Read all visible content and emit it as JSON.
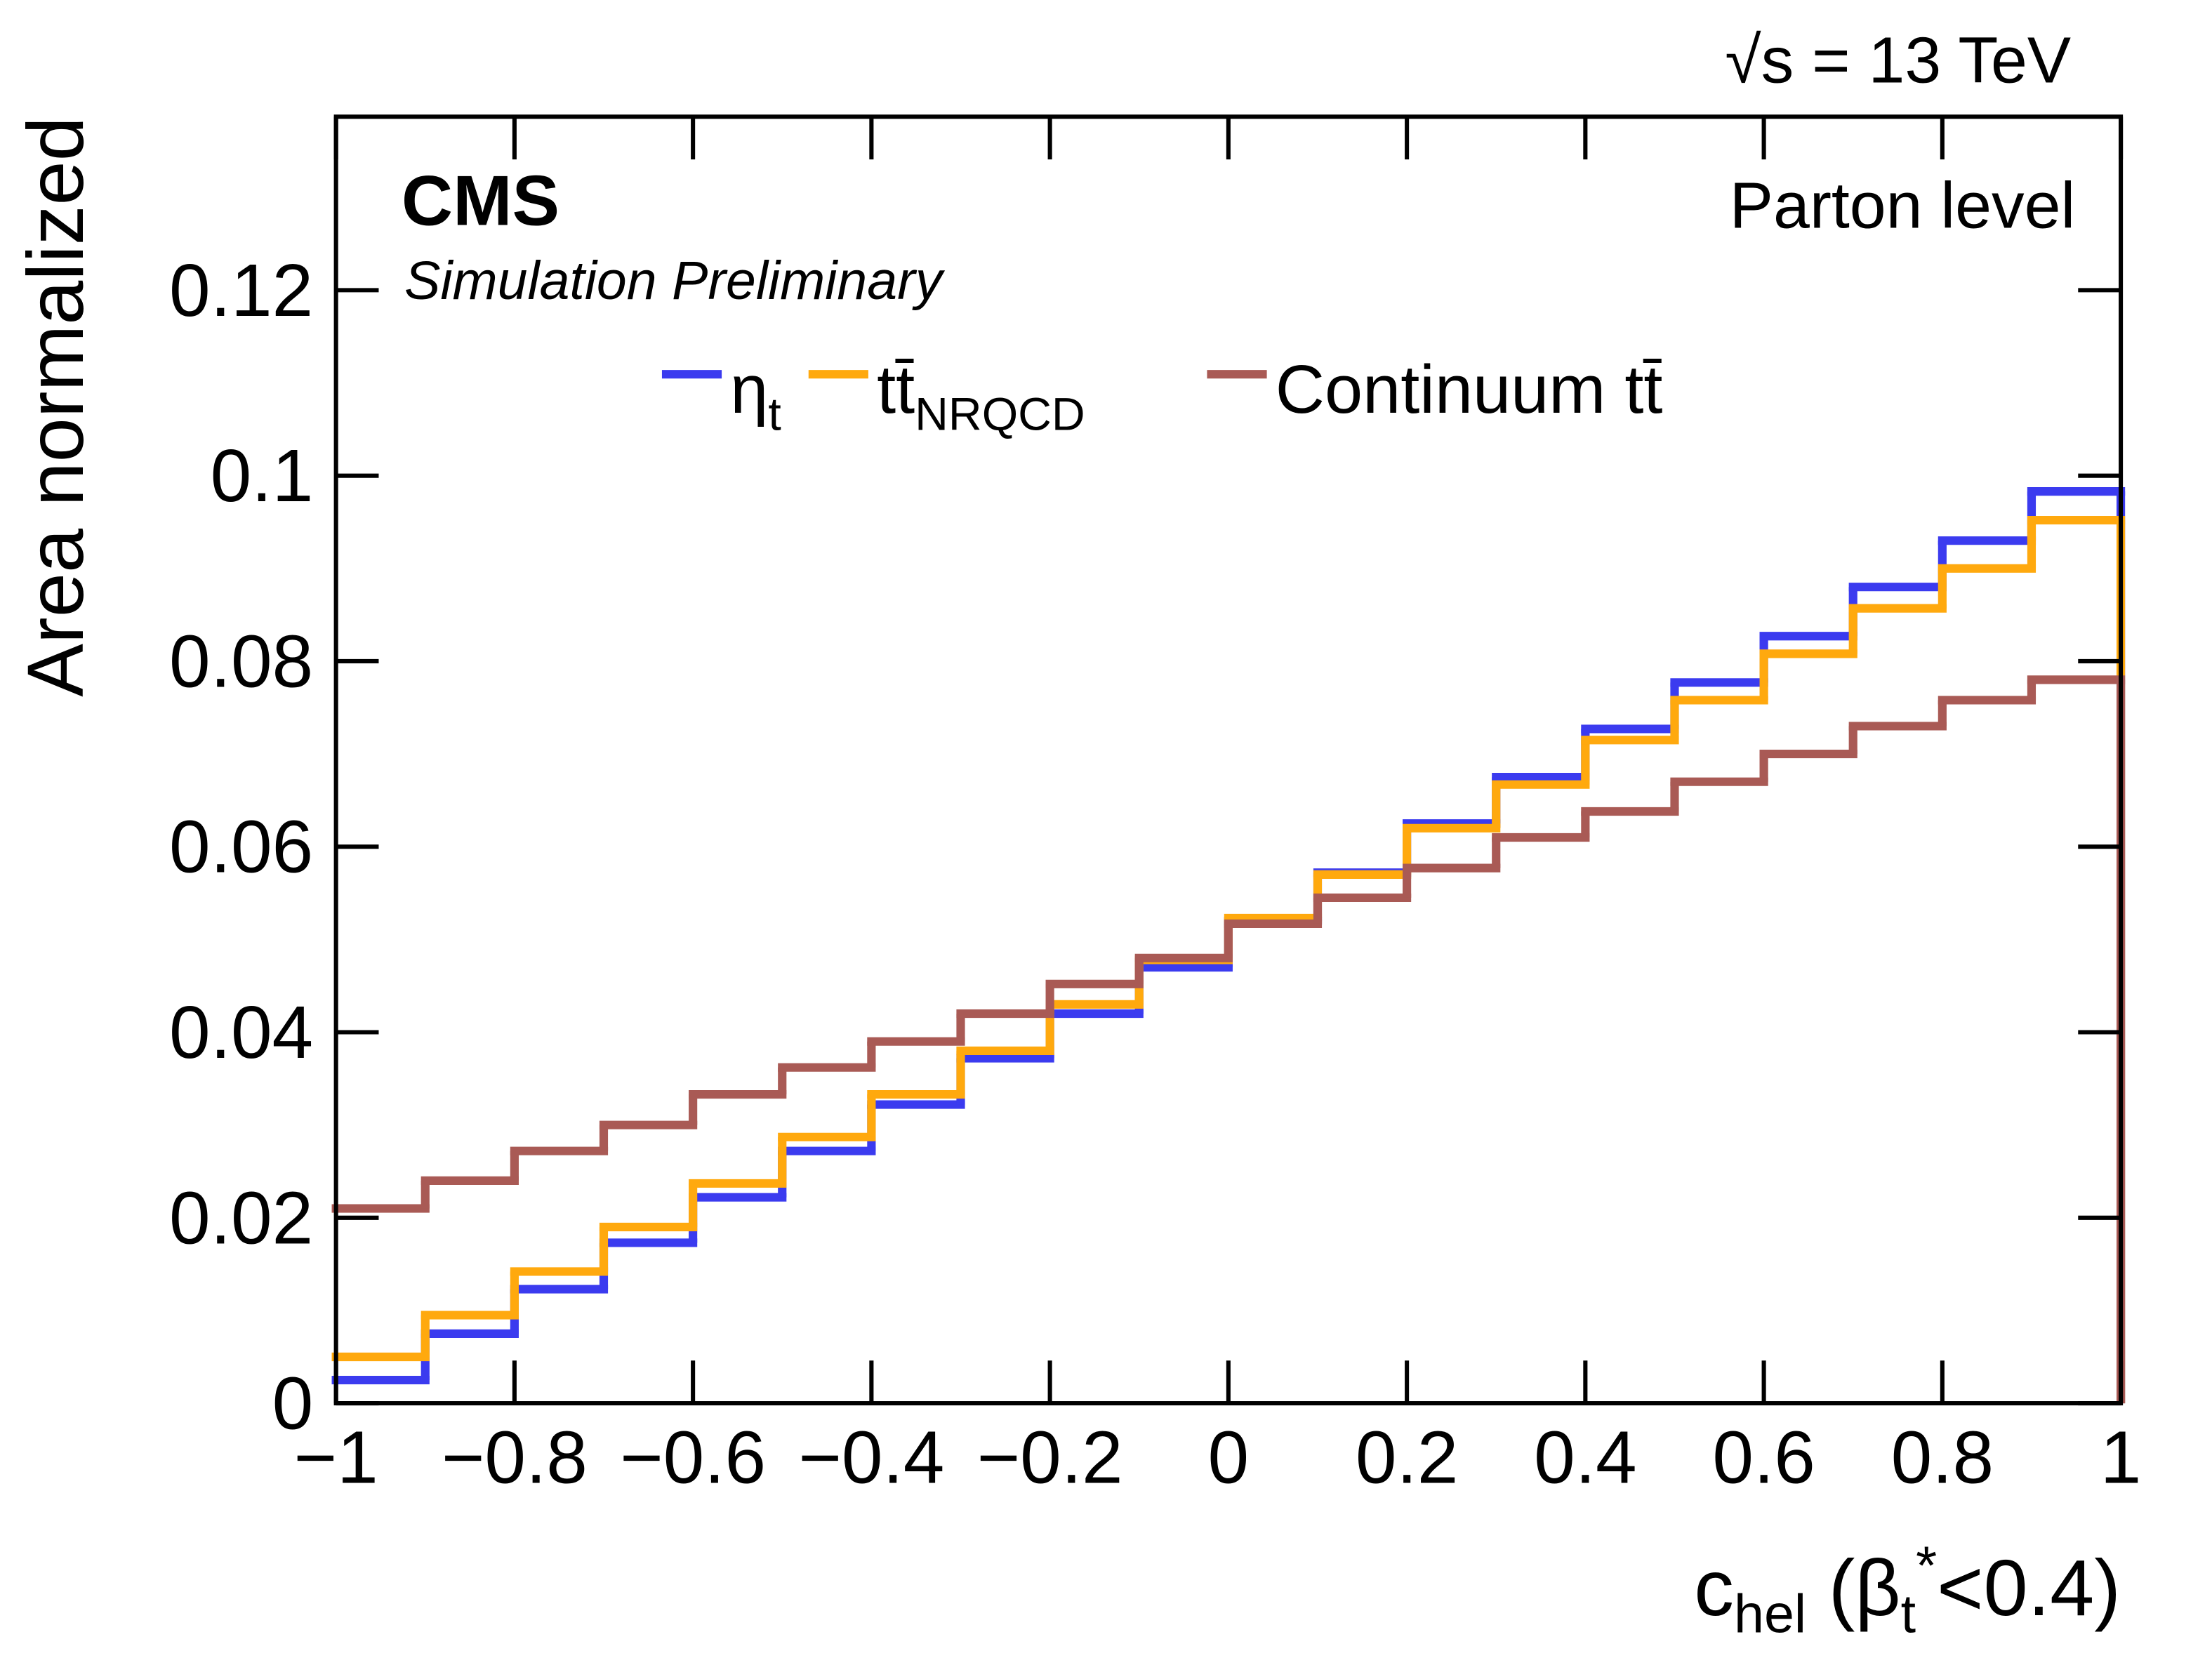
{
  "chart_data": {
    "type": "histogram",
    "energy_label": "√s = 13 TeV",
    "experiment": "CMS",
    "subtitle": "Simulation Preliminary",
    "annotation": "Parton level",
    "xlabel": "c_{hel} (β_{t}^{*}<0.4)",
    "ylabel": "Area normalized",
    "bins": [
      -1,
      -0.9,
      -0.8,
      -0.7,
      -0.6,
      -0.5,
      -0.4,
      -0.3,
      -0.2,
      -0.1,
      0,
      0.1,
      0.2,
      0.3,
      0.4,
      0.5,
      0.6,
      0.7,
      0.8,
      0.9,
      1
    ],
    "series": [
      {
        "name": "η_{t}",
        "color": "#3b3bef",
        "values": [
          0.0025,
          0.0075,
          0.0123,
          0.0173,
          0.0222,
          0.0272,
          0.0322,
          0.0372,
          0.042,
          0.047,
          0.052,
          0.0572,
          0.0625,
          0.0675,
          0.0727,
          0.0777,
          0.0827,
          0.088,
          0.093,
          0.0983
        ]
      },
      {
        "name": "tt̄_{NRQCD}",
        "color": "#ffa90e",
        "values": [
          0.005,
          0.0095,
          0.0142,
          0.019,
          0.0237,
          0.0287,
          0.0333,
          0.038,
          0.043,
          0.0478,
          0.0523,
          0.057,
          0.062,
          0.0667,
          0.0715,
          0.0758,
          0.0808,
          0.0857,
          0.09,
          0.0952
        ]
      },
      {
        "name": "Continuum tt̄",
        "color": "#a95a55",
        "values": [
          0.021,
          0.024,
          0.0272,
          0.03,
          0.0333,
          0.0362,
          0.039,
          0.042,
          0.0452,
          0.048,
          0.0517,
          0.0545,
          0.0577,
          0.061,
          0.0638,
          0.067,
          0.07,
          0.073,
          0.0758,
          0.078
        ]
      }
    ],
    "xlim": [
      -1,
      1
    ],
    "ylim": [
      0,
      0.1387
    ],
    "xticks": [
      {
        "value": -1,
        "label": "−1"
      },
      {
        "value": -0.8,
        "label": "−0.8"
      },
      {
        "value": -0.6,
        "label": "−0.6"
      },
      {
        "value": -0.4,
        "label": "−0.4"
      },
      {
        "value": -0.2,
        "label": "−0.2"
      },
      0,
      0.2,
      0.4,
      0.6,
      0.8,
      1
    ],
    "yticks": [
      0,
      0.02,
      0.04,
      0.06,
      0.08,
      0.1,
      0.12
    ]
  }
}
